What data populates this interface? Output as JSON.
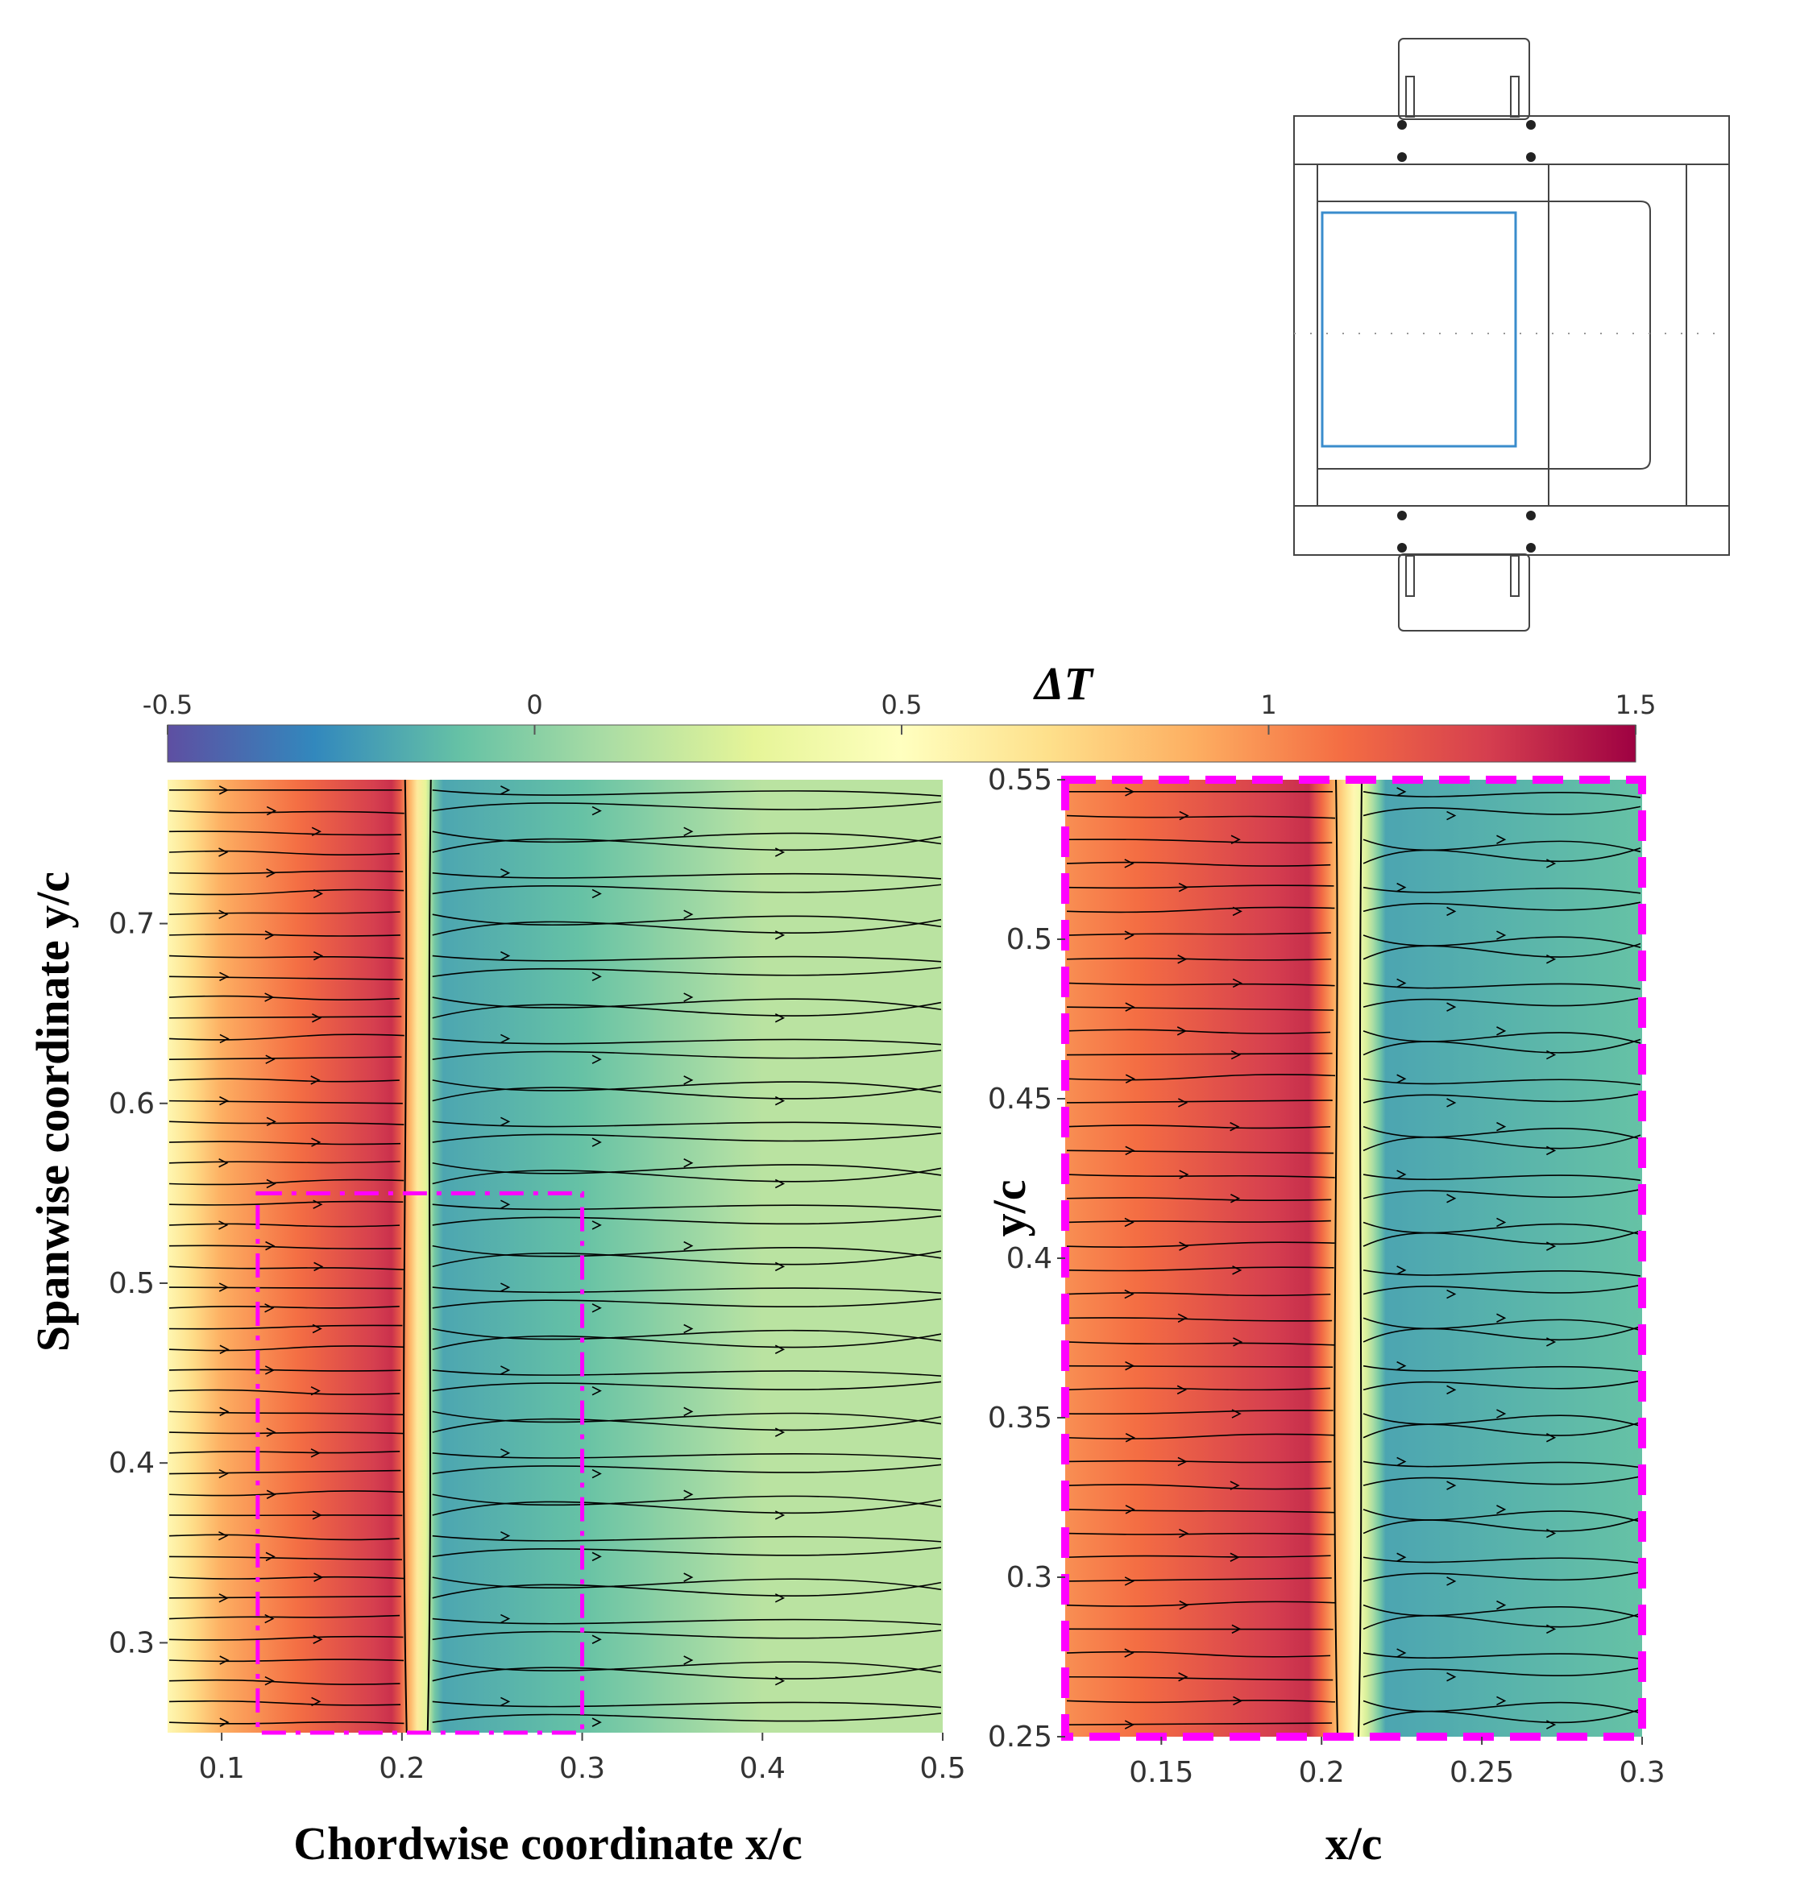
{
  "colorbar": {
    "title": "ΔT",
    "min": -0.5,
    "max": 1.5,
    "ticks": [
      -0.5,
      0,
      0.5,
      1,
      1.5
    ],
    "tick_labels": [
      "-0.5",
      "0",
      "0.5",
      "1",
      "1.5"
    ],
    "colormap": [
      "#5e4fa2",
      "#3288bd",
      "#66c2a5",
      "#abdda4",
      "#e6f598",
      "#ffffbf",
      "#fee08b",
      "#fdae61",
      "#f46d43",
      "#d53e4f",
      "#9e0142"
    ]
  },
  "chart_data": [
    {
      "type": "heatmap",
      "title": "",
      "xlabel": "Chordwise coordinate x/c",
      "ylabel": "Spanwise coordinate y/c",
      "xlim": [
        0.07,
        0.5
      ],
      "ylim": [
        0.25,
        0.78
      ],
      "xticks": [
        0.1,
        0.2,
        0.3,
        0.4,
        0.5
      ],
      "xtick_labels": [
        "0.1",
        "0.2",
        "0.3",
        "0.4",
        "0.5"
      ],
      "yticks": [
        0.3,
        0.4,
        0.5,
        0.6,
        0.7
      ],
      "ytick_labels": [
        "0.3",
        "0.4",
        "0.5",
        "0.6",
        "0.7"
      ],
      "field": {
        "quantity": "ΔT",
        "transition_front_x": 0.208,
        "laminar_deltaT": 1.2,
        "turbulent_deltaT": -0.2,
        "far_field_deltaT": 0.15
      },
      "overlay": "surface streamlines",
      "zoom_box": {
        "x": [
          0.12,
          0.3
        ],
        "y": [
          0.25,
          0.55
        ],
        "color": "#ff00ff"
      }
    },
    {
      "type": "heatmap",
      "title": "",
      "xlabel": "x/c",
      "ylabel": "y/c",
      "xlim": [
        0.12,
        0.3
      ],
      "ylim": [
        0.25,
        0.55
      ],
      "xticks": [
        0.15,
        0.2,
        0.25,
        0.3
      ],
      "xtick_labels": [
        "0.15",
        "0.2",
        "0.25",
        "0.3"
      ],
      "yticks": [
        0.25,
        0.3,
        0.35,
        0.4,
        0.45,
        0.5,
        0.55
      ],
      "ytick_labels": [
        "0.25",
        "0.3",
        "0.35",
        "0.4",
        "0.45",
        "0.5",
        "0.55"
      ],
      "field": {
        "quantity": "ΔT",
        "transition_front_x": 0.208,
        "laminar_deltaT": 1.2,
        "turbulent_deltaT": -0.2
      },
      "overlay": "surface streamlines",
      "border_color": "#ff00ff"
    }
  ]
}
